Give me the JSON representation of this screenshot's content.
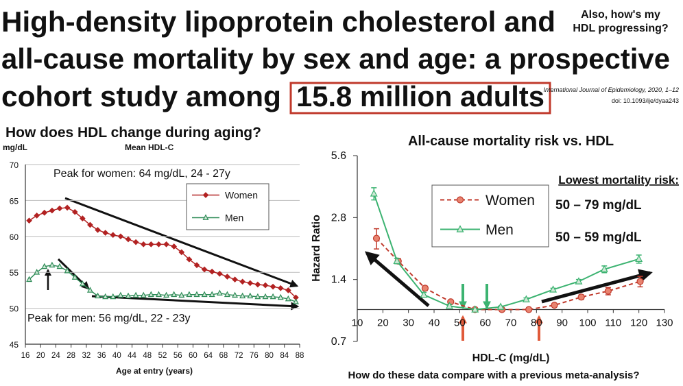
{
  "header": {
    "title_lines": [
      "High-density lipoprotein cholesterol and",
      "all-cause mortality by sex and age: a prospective",
      "cohort study among"
    ],
    "highlight": "15.8 million adults",
    "side_note": [
      "Also, how's my",
      "HDL progressing?"
    ],
    "citation": "International Journal of Epidemiology, 2020, 1–12",
    "doi": "doi: 10.1093/ije/dyaa243"
  },
  "footer": {
    "question": "How do these data compare with a previous meta-analysis?"
  },
  "chart_data": [
    {
      "type": "line",
      "title": "How does HDL change during aging?",
      "y_unit": "mg/dL",
      "subtitle": "Mean HDL-C",
      "xlabel": "Age at entry (years)",
      "x": [
        17,
        19,
        21,
        23,
        25,
        27,
        29,
        31,
        33,
        35,
        37,
        39,
        41,
        43,
        45,
        47,
        49,
        51,
        53,
        55,
        57,
        59,
        61,
        63,
        65,
        67,
        69,
        71,
        73,
        75,
        77,
        79,
        81,
        83,
        85,
        87
      ],
      "series": [
        {
          "name": "Women",
          "color": "#b22222",
          "marker": "diamond",
          "values": [
            62.2,
            62.9,
            63.3,
            63.6,
            63.9,
            64.0,
            63.4,
            62.5,
            61.6,
            60.9,
            60.5,
            60.2,
            60.0,
            59.6,
            59.2,
            58.9,
            58.9,
            58.9,
            58.9,
            58.6,
            57.8,
            56.8,
            56.0,
            55.4,
            55.1,
            54.8,
            54.4,
            54.0,
            53.7,
            53.5,
            53.3,
            53.2,
            53.0,
            52.8,
            52.5,
            51.5
          ]
        },
        {
          "name": "Men",
          "color": "#2e8b57",
          "marker": "triangle",
          "values": [
            54.0,
            55.0,
            55.8,
            56.0,
            55.8,
            55.2,
            54.3,
            53.4,
            52.5,
            51.7,
            51.6,
            51.6,
            51.8,
            51.7,
            51.8,
            51.8,
            51.9,
            51.9,
            51.8,
            51.9,
            51.8,
            51.9,
            51.9,
            51.9,
            51.9,
            52.1,
            51.9,
            51.8,
            51.7,
            51.7,
            51.6,
            51.6,
            51.6,
            51.5,
            51.3,
            50.9
          ]
        }
      ],
      "xlim": [
        16,
        88
      ],
      "xticks": [
        16,
        20,
        24,
        28,
        32,
        36,
        40,
        44,
        48,
        52,
        56,
        60,
        64,
        68,
        72,
        76,
        80,
        84,
        88
      ],
      "ylim": [
        45,
        70
      ],
      "yticks": [
        45,
        50,
        55,
        60,
        65,
        70
      ],
      "grid": true,
      "legend": "upper right",
      "annotations": [
        "Peak for women: 64 mg/dL, 24 - 27y",
        "Peak for men: 56 mg/dL, 22 - 23y"
      ]
    },
    {
      "type": "line",
      "title": "All-cause mortality risk vs. HDL",
      "ylabel": "Hazard Ratio",
      "xlabel": "HDL-C (mg/dL)",
      "series": [
        {
          "name": "Women",
          "color": "#c0392b",
          "marker": "circle",
          "dashed": true,
          "x": [
            17.5,
            26,
            36.5,
            46.5,
            56,
            66.5,
            77,
            87,
            97.5,
            108,
            120.5
          ],
          "values": [
            2.22,
            1.72,
            1.27,
            1.09,
            1.0,
            1.0,
            1.0,
            1.05,
            1.15,
            1.23,
            1.37
          ],
          "errors": [
            0.25,
            0.05,
            0.03,
            0.02,
            0.01,
            0.01,
            0.01,
            0.02,
            0.03,
            0.05,
            0.08
          ]
        },
        {
          "name": "Men",
          "color": "#3cb371",
          "marker": "triangle",
          "dashed": false,
          "x": [
            16.5,
            25.5,
            36,
            46,
            56,
            66,
            76,
            86.5,
            96.5,
            106.5,
            120
          ],
          "values": [
            3.66,
            1.72,
            1.18,
            1.04,
            1.0,
            1.03,
            1.12,
            1.25,
            1.37,
            1.57,
            1.76
          ],
          "errors": [
            0.25,
            0.05,
            0.03,
            0.02,
            0.01,
            0.01,
            0.02,
            0.02,
            0.03,
            0.06,
            0.08
          ]
        }
      ],
      "xlim": [
        10,
        130
      ],
      "xticks": [
        10,
        20,
        30,
        40,
        50,
        60,
        70,
        80,
        90,
        100,
        110,
        120,
        130
      ],
      "ylim": [
        0.7,
        5.6
      ],
      "yticks": [
        0.7,
        1.4,
        2.8,
        5.6
      ],
      "yscale": "log",
      "x_axis_at": 1,
      "grid": false,
      "legend": "upper center",
      "annotations": [
        "Lowest mortality risk:",
        "50 – 79 mg/dL",
        "50 – 59 mg/dL"
      ]
    }
  ]
}
